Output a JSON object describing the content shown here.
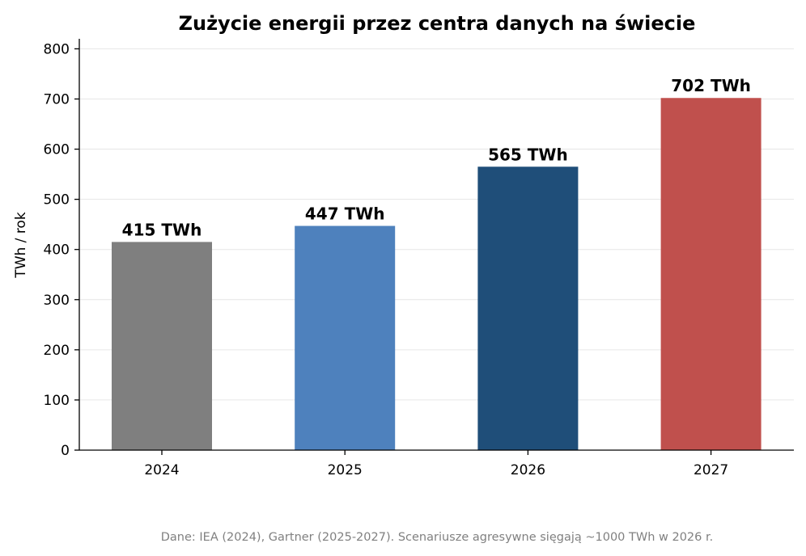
{
  "chart_data": {
    "type": "bar",
    "title": "Zużycie energii przez centra danych na świecie",
    "ylabel": "TWh / rok",
    "xlabel": "",
    "categories": [
      "2024",
      "2025",
      "2026",
      "2027"
    ],
    "values": [
      415,
      447,
      565,
      702
    ],
    "data_labels": [
      "415 TWh",
      "447 TWh",
      "565 TWh",
      "702 TWh"
    ],
    "colors": [
      "#7f7f7f",
      "#4e81bd",
      "#1f4e79",
      "#c0504d"
    ],
    "ylim": [
      0,
      820
    ],
    "yticks": [
      0,
      100,
      200,
      300,
      400,
      500,
      600,
      700,
      800
    ],
    "grid": "horizontal",
    "footnote": "Dane: IEA (2024), Gartner (2025-2027). Scenariusze agresywne sięgają ~1000 TWh w 2026 r."
  }
}
